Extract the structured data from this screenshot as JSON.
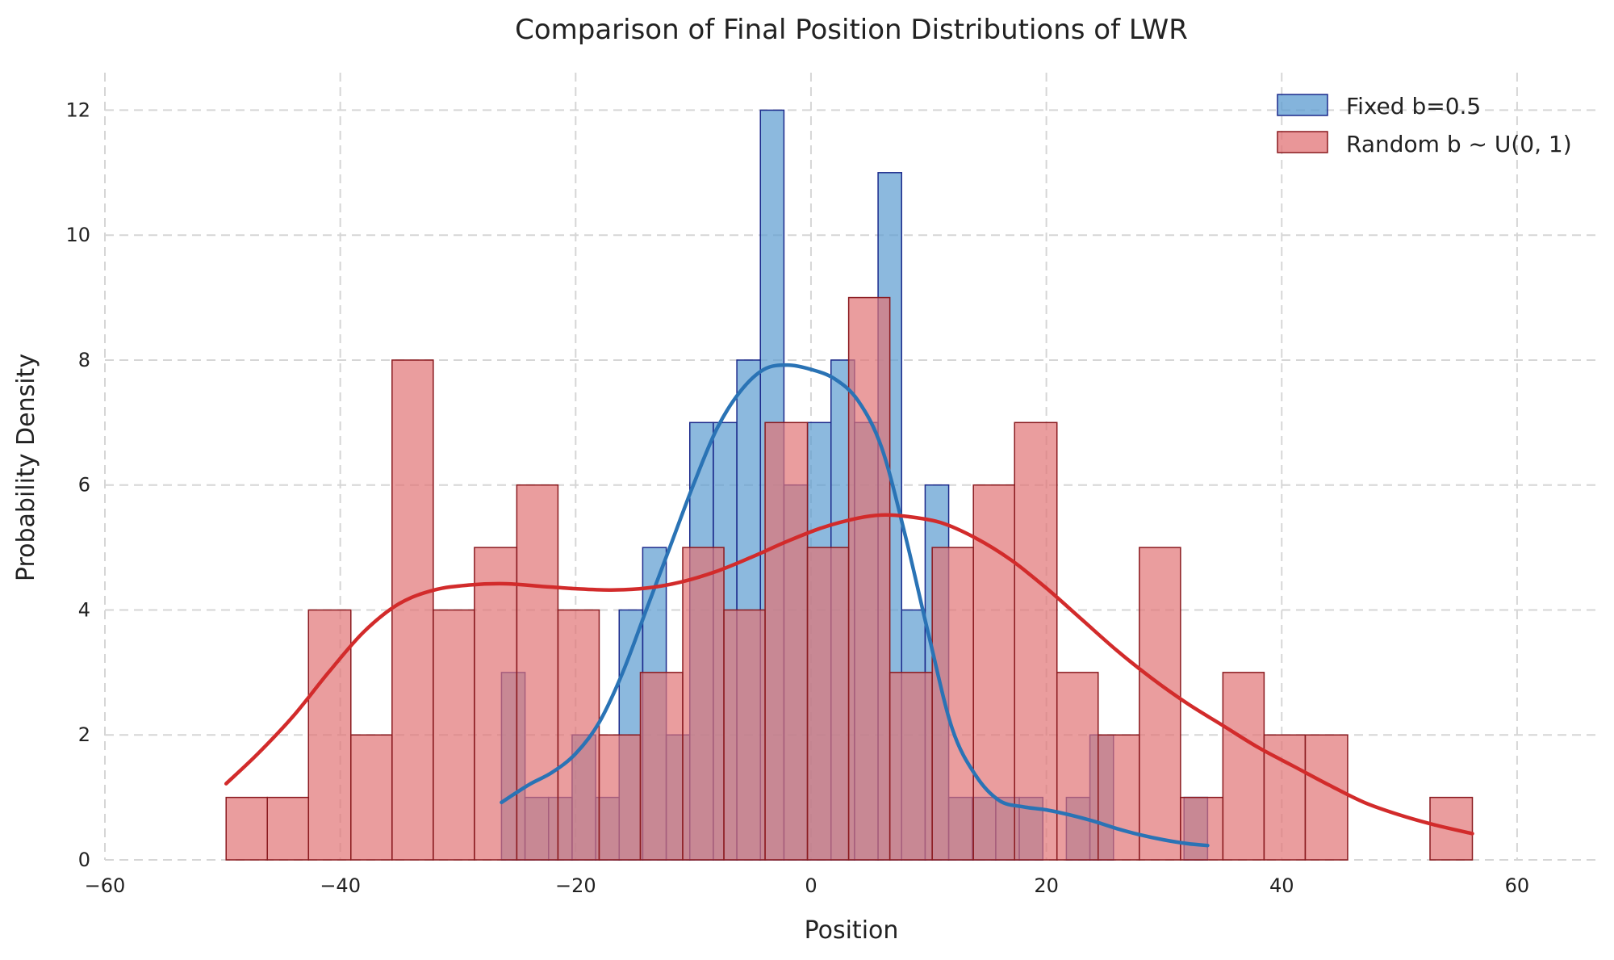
{
  "chart_data": {
    "type": "histogram",
    "title": "Comparison of Final Position Distributions of LWR",
    "xlabel": "Position",
    "ylabel": "Probability Density",
    "xlim": [
      -60,
      67
    ],
    "ylim": [
      0,
      12.6
    ],
    "xticks": [
      -60,
      -40,
      -20,
      0,
      20,
      40,
      60
    ],
    "xtick_labels": [
      "−60",
      "−40",
      "−20",
      "0",
      "20",
      "40",
      "60"
    ],
    "yticks": [
      0,
      2,
      4,
      6,
      8,
      10,
      12
    ],
    "ytick_labels": [
      "0",
      "2",
      "4",
      "6",
      "8",
      "10",
      "12"
    ],
    "grid": true,
    "legend_position": "top-right",
    "series": [
      {
        "name": "Fixed b=0.5",
        "legend_label": "Fixed b=0.5",
        "color": "#5b9bd0",
        "edge_color": "#1c2a8c",
        "kde_color": "#2a73b5",
        "bins": [
          {
            "x0": -26.3,
            "x1": -24.3,
            "value": 3
          },
          {
            "x0": -24.3,
            "x1": -22.3,
            "value": 1
          },
          {
            "x0": -22.3,
            "x1": -20.3,
            "value": 1
          },
          {
            "x0": -20.3,
            "x1": -18.3,
            "value": 2
          },
          {
            "x0": -18.3,
            "x1": -16.3,
            "value": 1
          },
          {
            "x0": -16.3,
            "x1": -14.3,
            "value": 4
          },
          {
            "x0": -14.3,
            "x1": -12.3,
            "value": 5
          },
          {
            "x0": -12.3,
            "x1": -10.3,
            "value": 2
          },
          {
            "x0": -10.3,
            "x1": -8.3,
            "value": 7
          },
          {
            "x0": -8.3,
            "x1": -6.3,
            "value": 7
          },
          {
            "x0": -6.3,
            "x1": -4.3,
            "value": 8
          },
          {
            "x0": -4.3,
            "x1": -2.3,
            "value": 12
          },
          {
            "x0": -2.3,
            "x1": -0.3,
            "value": 6
          },
          {
            "x0": -0.3,
            "x1": 1.7,
            "value": 7
          },
          {
            "x0": 1.7,
            "x1": 3.7,
            "value": 8
          },
          {
            "x0": 3.7,
            "x1": 5.7,
            "value": 7
          },
          {
            "x0": 5.7,
            "x1": 7.7,
            "value": 11
          },
          {
            "x0": 7.7,
            "x1": 9.7,
            "value": 4
          },
          {
            "x0": 9.7,
            "x1": 11.7,
            "value": 6
          },
          {
            "x0": 11.7,
            "x1": 13.7,
            "value": 1
          },
          {
            "x0": 13.7,
            "x1": 15.7,
            "value": 1
          },
          {
            "x0": 15.7,
            "x1": 17.7,
            "value": 1
          },
          {
            "x0": 17.7,
            "x1": 19.7,
            "value": 1
          },
          {
            "x0": 19.7,
            "x1": 21.7,
            "value": 0
          },
          {
            "x0": 21.7,
            "x1": 23.7,
            "value": 1
          },
          {
            "x0": 23.7,
            "x1": 25.7,
            "value": 2
          },
          {
            "x0": 25.7,
            "x1": 27.7,
            "value": 0
          },
          {
            "x0": 27.7,
            "x1": 29.7,
            "value": 0
          },
          {
            "x0": 29.7,
            "x1": 31.7,
            "value": 0
          },
          {
            "x0": 31.7,
            "x1": 33.7,
            "value": 1
          }
        ],
        "kde": [
          [
            -26.3,
            0.92
          ],
          [
            -24,
            1.2
          ],
          [
            -22,
            1.4
          ],
          [
            -20,
            1.7
          ],
          [
            -18,
            2.2
          ],
          [
            -16,
            3.0
          ],
          [
            -14,
            4.0
          ],
          [
            -12,
            5.0
          ],
          [
            -10,
            6.0
          ],
          [
            -8,
            6.9
          ],
          [
            -6,
            7.5
          ],
          [
            -4,
            7.85
          ],
          [
            -2,
            7.92
          ],
          [
            0,
            7.85
          ],
          [
            2,
            7.7
          ],
          [
            4,
            7.35
          ],
          [
            6,
            6.6
          ],
          [
            8,
            5.2
          ],
          [
            10,
            3.6
          ],
          [
            12,
            2.1
          ],
          [
            14,
            1.35
          ],
          [
            16,
            0.95
          ],
          [
            18,
            0.85
          ],
          [
            20,
            0.8
          ],
          [
            22,
            0.72
          ],
          [
            24,
            0.62
          ],
          [
            26,
            0.5
          ],
          [
            28,
            0.4
          ],
          [
            30,
            0.32
          ],
          [
            32,
            0.26
          ],
          [
            33.7,
            0.23
          ]
        ]
      },
      {
        "name": "Random b ~ U(0,1)",
        "legend_label": "Random b ~ U(0, 1)",
        "color": "#e17375",
        "edge_color": "#8a1a1f",
        "kde_color": "#d22b2b",
        "bins": [
          {
            "x0": -49.7,
            "x1": -46.2,
            "value": 1
          },
          {
            "x0": -46.2,
            "x1": -42.7,
            "value": 1
          },
          {
            "x0": -42.7,
            "x1": -39.1,
            "value": 4
          },
          {
            "x0": -39.1,
            "x1": -35.6,
            "value": 2
          },
          {
            "x0": -35.6,
            "x1": -32.1,
            "value": 8
          },
          {
            "x0": -32.1,
            "x1": -28.6,
            "value": 4
          },
          {
            "x0": -28.6,
            "x1": -25.0,
            "value": 5
          },
          {
            "x0": -25.0,
            "x1": -21.5,
            "value": 6
          },
          {
            "x0": -21.5,
            "x1": -18.0,
            "value": 4
          },
          {
            "x0": -18.0,
            "x1": -14.5,
            "value": 2
          },
          {
            "x0": -14.5,
            "x1": -10.9,
            "value": 3
          },
          {
            "x0": -10.9,
            "x1": -7.4,
            "value": 5
          },
          {
            "x0": -7.4,
            "x1": -3.9,
            "value": 4
          },
          {
            "x0": -3.9,
            "x1": -0.3,
            "value": 7
          },
          {
            "x0": -0.3,
            "x1": 3.2,
            "value": 5
          },
          {
            "x0": 3.2,
            "x1": 6.7,
            "value": 9
          },
          {
            "x0": 6.7,
            "x1": 10.3,
            "value": 3
          },
          {
            "x0": 10.3,
            "x1": 13.8,
            "value": 5
          },
          {
            "x0": 13.8,
            "x1": 17.3,
            "value": 6
          },
          {
            "x0": 17.3,
            "x1": 20.9,
            "value": 7
          },
          {
            "x0": 20.9,
            "x1": 24.4,
            "value": 3
          },
          {
            "x0": 24.4,
            "x1": 27.9,
            "value": 2
          },
          {
            "x0": 27.9,
            "x1": 31.4,
            "value": 5
          },
          {
            "x0": 31.4,
            "x1": 35.0,
            "value": 1
          },
          {
            "x0": 35.0,
            "x1": 38.5,
            "value": 3
          },
          {
            "x0": 38.5,
            "x1": 42.0,
            "value": 2
          },
          {
            "x0": 42.0,
            "x1": 45.6,
            "value": 2
          },
          {
            "x0": 45.6,
            "x1": 49.1,
            "value": 0
          },
          {
            "x0": 49.1,
            "x1": 52.6,
            "value": 0
          },
          {
            "x0": 52.6,
            "x1": 56.2,
            "value": 1
          }
        ],
        "kde": [
          [
            -49.7,
            1.22
          ],
          [
            -47,
            1.7
          ],
          [
            -44,
            2.3
          ],
          [
            -41,
            3.0
          ],
          [
            -38,
            3.65
          ],
          [
            -35,
            4.1
          ],
          [
            -32,
            4.32
          ],
          [
            -29,
            4.4
          ],
          [
            -26,
            4.42
          ],
          [
            -23,
            4.38
          ],
          [
            -20,
            4.34
          ],
          [
            -17,
            4.32
          ],
          [
            -14,
            4.35
          ],
          [
            -11,
            4.45
          ],
          [
            -8,
            4.62
          ],
          [
            -5,
            4.85
          ],
          [
            -2,
            5.1
          ],
          [
            1,
            5.32
          ],
          [
            4,
            5.47
          ],
          [
            6,
            5.52
          ],
          [
            8,
            5.5
          ],
          [
            11,
            5.4
          ],
          [
            14,
            5.15
          ],
          [
            17,
            4.8
          ],
          [
            20,
            4.35
          ],
          [
            23,
            3.85
          ],
          [
            26,
            3.35
          ],
          [
            29,
            2.9
          ],
          [
            32,
            2.5
          ],
          [
            35,
            2.15
          ],
          [
            38,
            1.8
          ],
          [
            41,
            1.5
          ],
          [
            44,
            1.2
          ],
          [
            47,
            0.92
          ],
          [
            50,
            0.72
          ],
          [
            53,
            0.56
          ],
          [
            56.2,
            0.42
          ]
        ]
      }
    ]
  }
}
